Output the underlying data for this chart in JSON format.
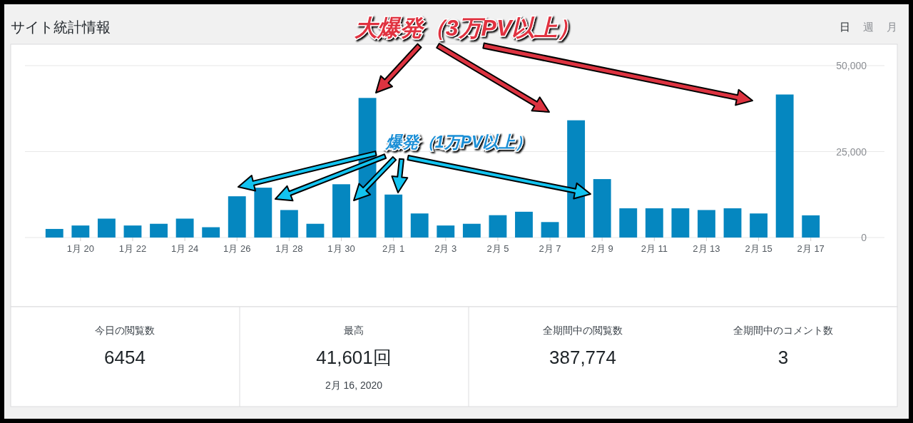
{
  "chart_data": {
    "type": "bar",
    "title": "サイト統計情報",
    "categories": [
      null,
      "1月 20",
      null,
      "1月 22",
      null,
      "1月 24",
      null,
      "1月 26",
      null,
      "1月 28",
      null,
      "1月 30",
      null,
      "2月 1",
      null,
      "2月 3",
      null,
      "2月 5",
      null,
      "2月 7",
      null,
      "2月 9",
      null,
      "2月 11",
      null,
      "2月 13",
      null,
      "2月 15",
      null,
      "2月 17"
    ],
    "values": [
      2500,
      3500,
      5500,
      3500,
      4000,
      5500,
      3000,
      12000,
      14500,
      8000,
      4000,
      15500,
      40600,
      12500,
      7000,
      3500,
      4000,
      6500,
      7500,
      4500,
      34100,
      17000,
      8500,
      8500,
      8500,
      8000,
      8500,
      7000,
      41601,
      6454
    ],
    "color": "#0587c0",
    "ylim": [
      0,
      50000
    ],
    "yticks": [
      0,
      {
        "value": 25000,
        "label": "25,000"
      },
      {
        "value": 50000,
        "label": "50,000"
      }
    ],
    "grid": "y",
    "annotations": [
      "大爆発（3万PV以上）",
      "爆発（1万PV以上）",
      "日",
      "週",
      "月",
      "今日の閲覧数",
      "6454",
      "最高",
      "41,601回",
      "2月 16, 2020",
      "全期間中の閲覧数",
      "387,774",
      "全期間中のコメント数",
      "3"
    ]
  }
}
